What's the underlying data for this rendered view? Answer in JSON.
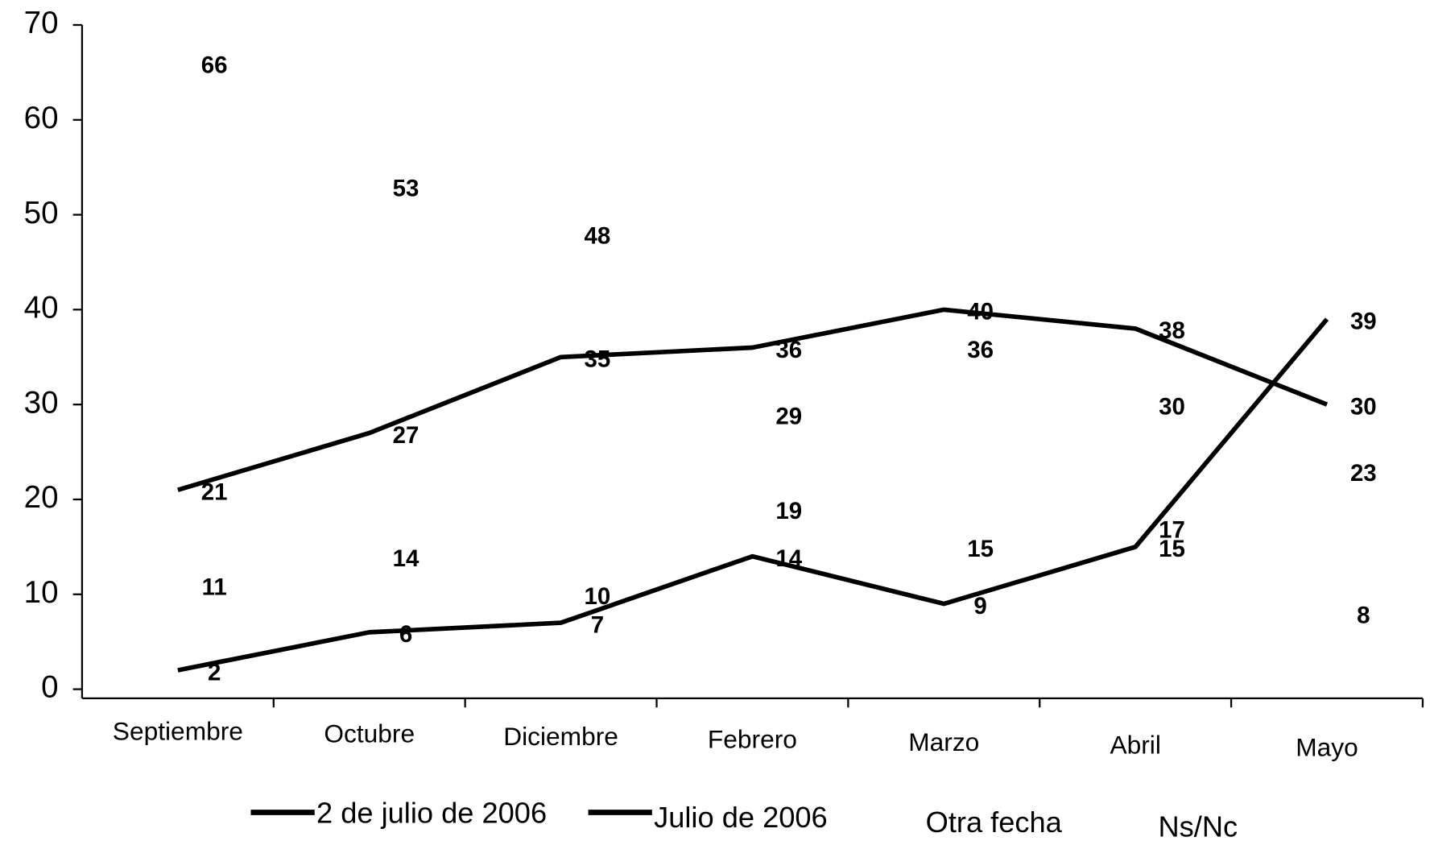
{
  "chart_data": {
    "type": "line",
    "categories": [
      "Septiembre",
      "Octubre",
      "Diciembre",
      "Febrero",
      "Marzo",
      "Abril",
      "Mayo"
    ],
    "series": [
      {
        "name": "2 de julio de 2006",
        "color": "#000000",
        "values": [
          21,
          27,
          35,
          36,
          40,
          38,
          30
        ]
      },
      {
        "name": "Julio de 2006",
        "color": "#000000",
        "values": [
          2,
          6,
          7,
          14,
          9,
          15,
          39
        ]
      },
      {
        "name": "Otra fecha",
        "values": [
          11,
          14,
          10,
          19,
          15,
          17,
          8
        ]
      },
      {
        "name": "Ns/Nc",
        "values": [
          66,
          53,
          48,
          29,
          36,
          30,
          23
        ]
      }
    ],
    "ylim": [
      0,
      70
    ],
    "yticks": [
      0,
      10,
      20,
      30,
      40,
      50,
      60,
      70
    ]
  }
}
